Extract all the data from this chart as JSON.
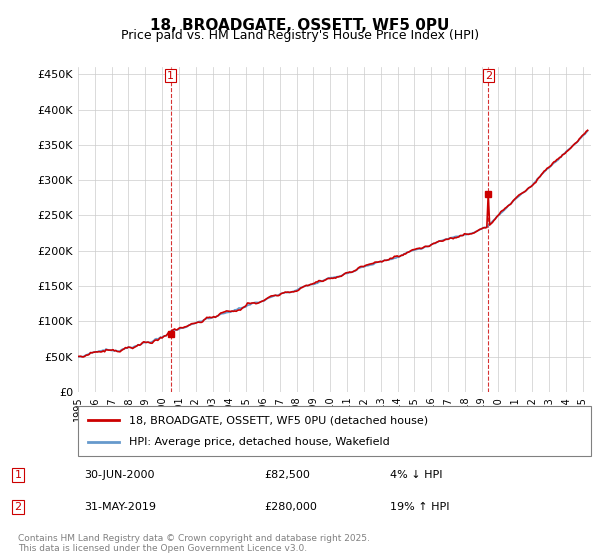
{
  "title": "18, BROADGATE, OSSETT, WF5 0PU",
  "subtitle": "Price paid vs. HM Land Registry's House Price Index (HPI)",
  "ylabel_ticks": [
    "£0",
    "£50K",
    "£100K",
    "£150K",
    "£200K",
    "£250K",
    "£300K",
    "£350K",
    "£400K",
    "£450K"
  ],
  "ytick_values": [
    0,
    50000,
    100000,
    150000,
    200000,
    250000,
    300000,
    350000,
    400000,
    450000
  ],
  "ylim": [
    0,
    460000
  ],
  "xlim_start": 1995.0,
  "xlim_end": 2025.5,
  "transaction1_x": 2000.5,
  "transaction1_y": 82500,
  "transaction2_x": 2019.4,
  "transaction2_y": 280000,
  "line1_color": "#cc0000",
  "line2_color": "#6699cc",
  "vline_color": "#cc0000",
  "legend_line1": "18, BROADGATE, OSSETT, WF5 0PU (detached house)",
  "legend_line2": "HPI: Average price, detached house, Wakefield",
  "ann1_date": "30-JUN-2000",
  "ann1_price": "£82,500",
  "ann1_hpi": "4% ↓ HPI",
  "ann2_date": "31-MAY-2019",
  "ann2_price": "£280,000",
  "ann2_hpi": "19% ↑ HPI",
  "footer": "Contains HM Land Registry data © Crown copyright and database right 2025.\nThis data is licensed under the Open Government Licence v3.0.",
  "background_color": "#ffffff",
  "grid_color": "#cccccc"
}
